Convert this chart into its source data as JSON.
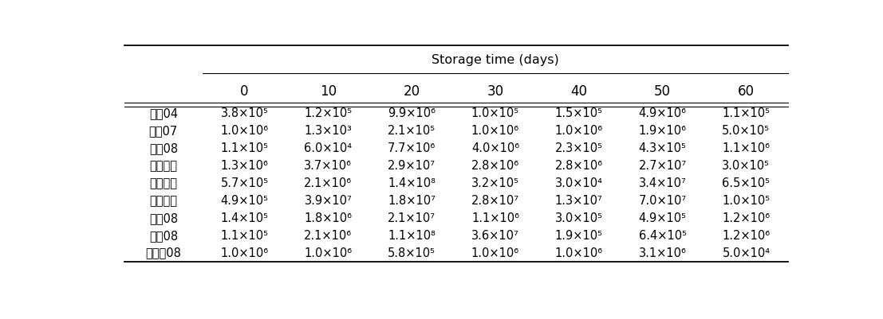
{
  "header_main": "Storage time (days)",
  "col_headers": [
    "0",
    "10",
    "20",
    "30",
    "40",
    "50",
    "60"
  ],
  "row_labels": [
    "태평04",
    "개천07",
    "동일08",
    "함초자연",
    "미세분말",
    "재제소금",
    "중국08",
    "호주08",
    "멕시케08"
  ],
  "cell_data": [
    [
      "3.8×10⁵",
      "1.2×10⁵",
      "9.9×10⁶",
      "1.0×10⁵",
      "1.5×10⁵",
      "4.9×10⁶",
      "1.1×10⁵"
    ],
    [
      "1.0×10⁶",
      "1.3×10³",
      "2.1×10⁵",
      "1.0×10⁶",
      "1.0×10⁶",
      "1.9×10⁶",
      "5.0×10⁵"
    ],
    [
      "1.1×10⁵",
      "6.0×10⁴",
      "7.7×10⁶",
      "4.0×10⁶",
      "2.3×10⁵",
      "4.3×10⁵",
      "1.1×10⁶"
    ],
    [
      "1.3×10⁶",
      "3.7×10⁶",
      "2.9×10⁷",
      "2.8×10⁶",
      "2.8×10⁶",
      "2.7×10⁷",
      "3.0×10⁵"
    ],
    [
      "5.7×10⁵",
      "2.1×10⁶",
      "1.4×10⁸",
      "3.2×10⁵",
      "3.0×10⁴",
      "3.4×10⁷",
      "6.5×10⁵"
    ],
    [
      "4.9×10⁵",
      "3.9×10⁷",
      "1.8×10⁷",
      "2.8×10⁷",
      "1.3×10⁷",
      "7.0×10⁷",
      "1.0×10⁵"
    ],
    [
      "1.4×10⁵",
      "1.8×10⁶",
      "2.1×10⁷",
      "1.1×10⁶",
      "3.0×10⁵",
      "4.9×10⁵",
      "1.2×10⁶"
    ],
    [
      "1.1×10⁵",
      "2.1×10⁶",
      "1.1×10⁸",
      "3.6×10⁷",
      "1.9×10⁵",
      "6.4×10⁵",
      "1.2×10⁶"
    ],
    [
      "1.0×10⁶",
      "1.0×10⁶",
      "5.8×10⁵",
      "1.0×10⁶",
      "1.0×10⁶",
      "3.1×10⁶",
      "5.0×10⁴"
    ]
  ],
  "bg_color": "#ffffff",
  "line_color": "#000000",
  "font_size": 10.5,
  "header_font_size": 11.5,
  "col_header_font_size": 12
}
